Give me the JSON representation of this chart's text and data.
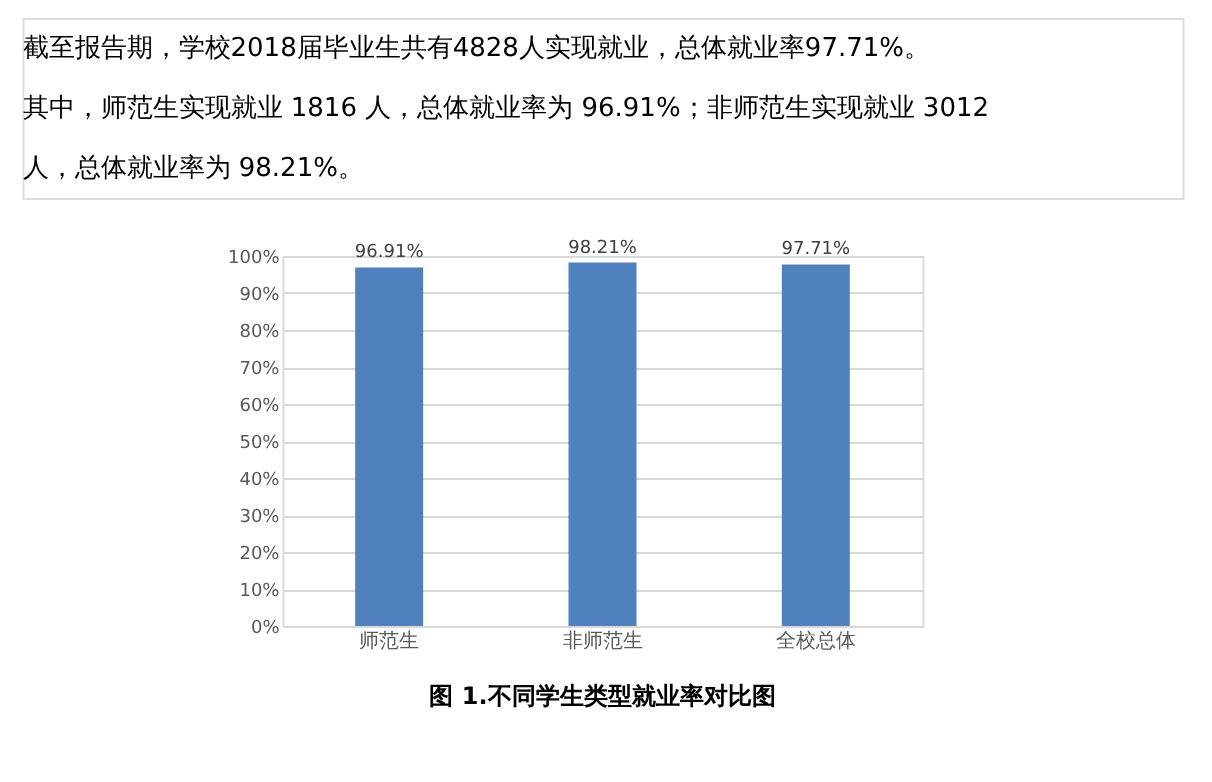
{
  "chart_data": {
    "type": "bar",
    "title": "图 1.不同学生类型就业率对比图",
    "annotations": [
      "截至报告期，学校2018届毕业生共有4828人实现就业，总体就业率97.71%。",
      "其中，师范生实现就业 1816 人，总体就业率为 96.91%；非师范生实现就业 3012",
      "人，总体就业率为 98.21%。"
    ],
    "categories": [
      "师范生",
      "非师范生",
      "全校总体"
    ],
    "values": [
      96.91,
      98.21,
      97.71
    ],
    "value_labels": [
      "96.91%",
      "98.21%",
      "97.71%"
    ],
    "color": "#4f81bd",
    "ylim": [
      0,
      100
    ],
    "yticks": [
      {
        "value": 0,
        "label": "0%"
      },
      {
        "value": 10,
        "label": "10%"
      },
      {
        "value": 20,
        "label": "20%"
      },
      {
        "value": 30,
        "label": "30%"
      },
      {
        "value": 40,
        "label": "40%"
      },
      {
        "value": 50,
        "label": "50%"
      },
      {
        "value": 60,
        "label": "60%"
      },
      {
        "value": 70,
        "label": "70%"
      },
      {
        "value": 80,
        "label": "80%"
      },
      {
        "value": 90,
        "label": "90%"
      },
      {
        "value": 100,
        "label": "100%"
      }
    ],
    "grid": "y"
  }
}
